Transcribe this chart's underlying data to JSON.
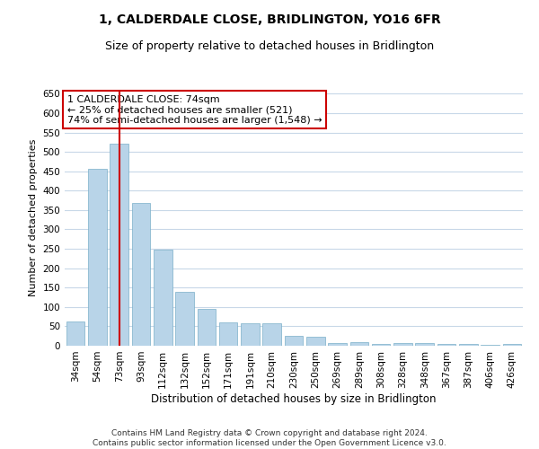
{
  "title": "1, CALDERDALE CLOSE, BRIDLINGTON, YO16 6FR",
  "subtitle": "Size of property relative to detached houses in Bridlington",
  "xlabel": "Distribution of detached houses by size in Bridlington",
  "ylabel": "Number of detached properties",
  "categories": [
    "34sqm",
    "54sqm",
    "73sqm",
    "93sqm",
    "112sqm",
    "132sqm",
    "152sqm",
    "171sqm",
    "191sqm",
    "210sqm",
    "230sqm",
    "250sqm",
    "269sqm",
    "289sqm",
    "308sqm",
    "328sqm",
    "348sqm",
    "367sqm",
    "387sqm",
    "406sqm",
    "426sqm"
  ],
  "values": [
    62,
    457,
    521,
    369,
    247,
    140,
    94,
    61,
    58,
    57,
    25,
    24,
    7,
    10,
    5,
    6,
    8,
    4,
    5,
    3,
    4
  ],
  "bar_color": "#b8d4e8",
  "bar_edgecolor": "#7aafc8",
  "redline_color": "#cc0000",
  "redline_index": 2,
  "annotation_text": "1 CALDERDALE CLOSE: 74sqm\n← 25% of detached houses are smaller (521)\n74% of semi-detached houses are larger (1,548) →",
  "annotation_box_color": "#ffffff",
  "annotation_box_edgecolor": "#cc0000",
  "ylim": [
    0,
    660
  ],
  "yticks": [
    0,
    50,
    100,
    150,
    200,
    250,
    300,
    350,
    400,
    450,
    500,
    550,
    600,
    650
  ],
  "bg_color": "#ffffff",
  "grid_color": "#c8d8e8",
  "footnote": "Contains HM Land Registry data © Crown copyright and database right 2024.\nContains public sector information licensed under the Open Government Licence v3.0.",
  "title_fontsize": 10,
  "subtitle_fontsize": 9,
  "xlabel_fontsize": 8.5,
  "ylabel_fontsize": 8,
  "tick_fontsize": 7.5,
  "annotation_fontsize": 8,
  "footnote_fontsize": 6.5
}
